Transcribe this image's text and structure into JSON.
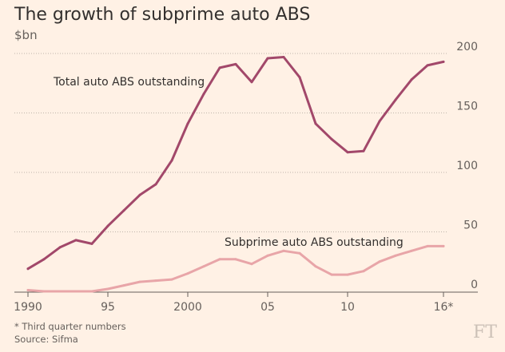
{
  "chart_data": {
    "type": "line",
    "title": "The growth of subprime auto ABS",
    "subtitle": "$bn",
    "x": [
      1990,
      1991,
      1992,
      1993,
      1994,
      1995,
      1996,
      1997,
      1998,
      1999,
      2000,
      2001,
      2002,
      2003,
      2004,
      2005,
      2006,
      2007,
      2008,
      2009,
      2010,
      2011,
      2012,
      2013,
      2014,
      2015,
      2016
    ],
    "x_ticks": [
      1990,
      1995,
      2000,
      2005,
      2010,
      2016
    ],
    "x_tick_labels": [
      "1990",
      "95",
      "2000",
      "05",
      "10",
      "16*"
    ],
    "ylim": [
      0,
      200
    ],
    "y_ticks": [
      0,
      50,
      100,
      150,
      200
    ],
    "y_tick_labels": [
      "0",
      "50",
      "100",
      "150",
      "200"
    ],
    "grid": true,
    "series": [
      {
        "name": "Total auto ABS outstanding",
        "color": "#a2486a",
        "values": [
          19,
          27,
          37,
          43,
          40,
          55,
          68,
          81,
          90,
          110,
          141,
          166,
          188,
          191,
          176,
          196,
          197,
          180,
          141,
          128,
          117,
          118,
          143,
          161,
          178,
          190,
          193
        ]
      },
      {
        "name": "Subprime auto ABS outstanding",
        "color": "#e8a5a8",
        "values": [
          1,
          0,
          0,
          0,
          0,
          2,
          5,
          8,
          9,
          10,
          15,
          21,
          27,
          27,
          23,
          30,
          34,
          32,
          21,
          14,
          14,
          17,
          25,
          30,
          34,
          38,
          38
        ]
      }
    ]
  },
  "footnote": "* Third quarter numbers",
  "source": "Source: Sifma",
  "logo": "FT"
}
